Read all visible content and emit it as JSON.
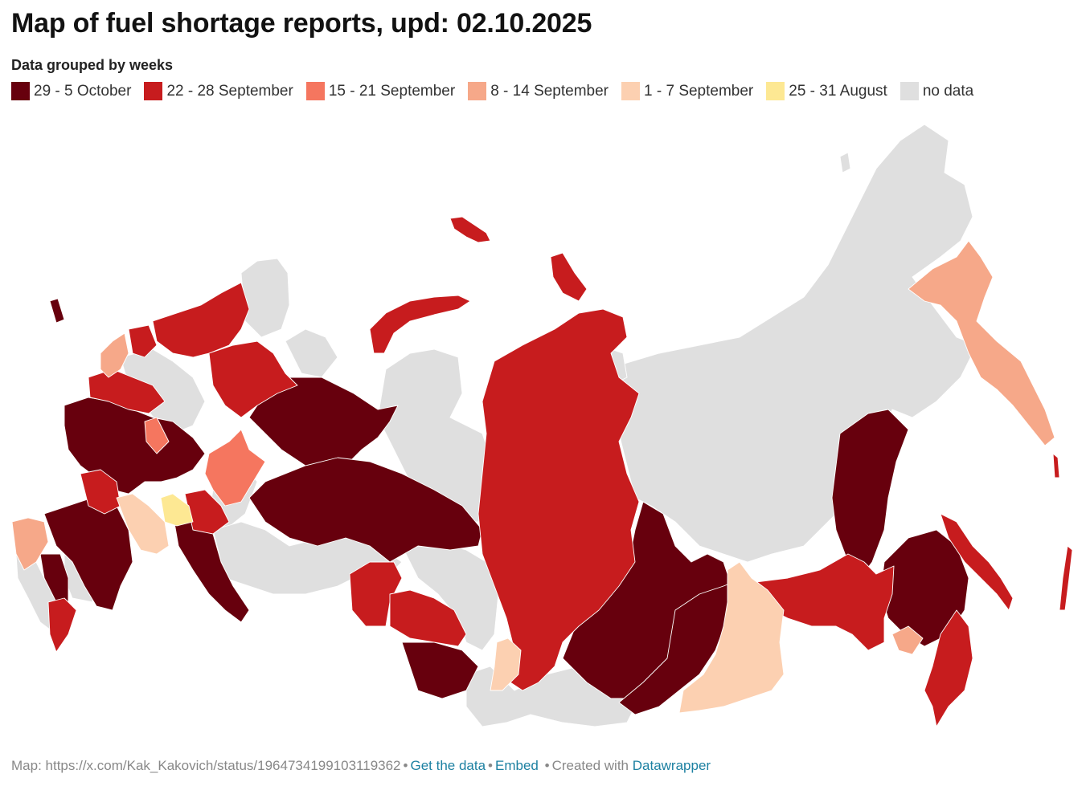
{
  "header": {
    "title": "Map of fuel shortage reports, upd: 02.10.2025",
    "subtitle": "Data grouped by weeks"
  },
  "legend": [
    {
      "label": "29 - 5 October",
      "color": "#67000d"
    },
    {
      "label": "22 - 28 September",
      "color": "#c71c1e"
    },
    {
      "label": "15 - 21 September",
      "color": "#f5765f"
    },
    {
      "label": "8 - 14 September",
      "color": "#f6a889"
    },
    {
      "label": "1 - 7 September",
      "color": "#fcd0b1"
    },
    {
      "label": "25 - 31 August",
      "color": "#fde893"
    },
    {
      "label": "no data",
      "color": "#dfdfdf"
    }
  ],
  "footer": {
    "source": "Map: https://x.com/Kak_Kakovich/status/1964734199103119362",
    "get_data": "Get the data",
    "embed": "Embed",
    "created_with": "Created with",
    "datawrapper": "Datawrapper"
  }
}
